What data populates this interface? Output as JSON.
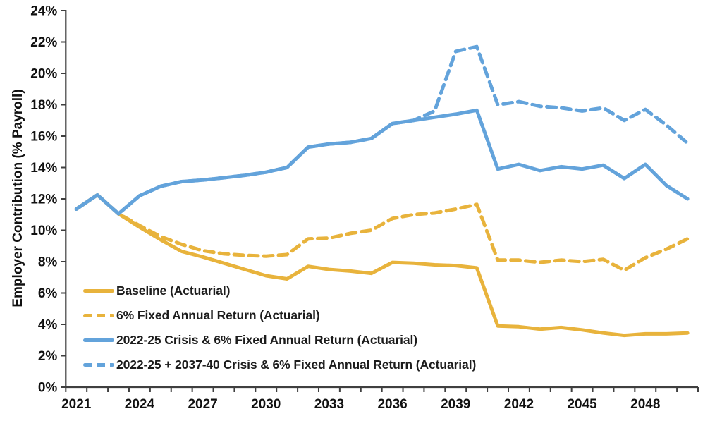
{
  "chart_data": {
    "type": "line",
    "title": "",
    "xlabel": "",
    "ylabel": "Employer Contribution (% Payroll)",
    "ylim": [
      0,
      24
    ],
    "y_tick_step": 2,
    "y_tick_suffix": "%",
    "grid": false,
    "legend_position": "inside bottom-left",
    "x": [
      2021,
      2022,
      2023,
      2024,
      2025,
      2026,
      2027,
      2028,
      2029,
      2030,
      2031,
      2032,
      2033,
      2034,
      2035,
      2036,
      2037,
      2038,
      2039,
      2040,
      2041,
      2042,
      2043,
      2044,
      2045,
      2046,
      2047,
      2048,
      2049,
      2050
    ],
    "x_tick_labels": [
      "2021",
      "2024",
      "2027",
      "2030",
      "2033",
      "2036",
      "2039",
      "2042",
      "2045",
      "2048"
    ],
    "axis_color": "#3f3f3f",
    "text_color": "#111111",
    "series": [
      {
        "name": "Baseline (Actuarial)",
        "color": "#e8b33c",
        "style": "solid",
        "values": [
          11.35,
          12.25,
          11.05,
          10.2,
          9.4,
          8.65,
          8.3,
          7.9,
          7.5,
          7.1,
          6.9,
          7.7,
          7.5,
          7.4,
          7.25,
          7.95,
          7.9,
          7.8,
          7.75,
          7.6,
          3.9,
          3.85,
          3.7,
          3.8,
          3.65,
          3.45,
          3.3,
          3.4,
          3.4,
          3.45
        ]
      },
      {
        "name": "6% Fixed Annual Return (Actuarial)",
        "color": "#e8b33c",
        "style": "dashed",
        "values": [
          11.35,
          12.25,
          11.05,
          10.3,
          9.6,
          9.1,
          8.7,
          8.5,
          8.4,
          8.35,
          8.45,
          9.45,
          9.5,
          9.8,
          10.0,
          10.75,
          11.0,
          11.1,
          11.35,
          11.65,
          8.1,
          8.1,
          7.95,
          8.1,
          8.0,
          8.15,
          7.45,
          8.25,
          8.8,
          9.45
        ]
      },
      {
        "name": "2022-25 Crisis & 6% Fixed Annual Return (Actuarial)",
        "color": "#63a3db",
        "style": "solid",
        "values": [
          11.35,
          12.25,
          11.05,
          12.2,
          12.8,
          13.1,
          13.2,
          13.35,
          13.5,
          13.7,
          14.0,
          15.3,
          15.5,
          15.6,
          15.85,
          16.8,
          17.0,
          17.2,
          17.4,
          17.65,
          13.9,
          14.2,
          13.8,
          14.05,
          13.9,
          14.15,
          13.3,
          14.2,
          12.85,
          12.0
        ]
      },
      {
        "name": "2022-25 + 2037-40 Crisis & 6% Fixed Annual Return (Actuarial)",
        "color": "#63a3db",
        "style": "dashed",
        "values": [
          11.35,
          12.25,
          11.05,
          12.2,
          12.8,
          13.1,
          13.2,
          13.35,
          13.5,
          13.7,
          14.0,
          15.3,
          15.5,
          15.6,
          15.85,
          16.8,
          17.0,
          17.6,
          21.4,
          21.7,
          18.0,
          18.2,
          17.9,
          17.8,
          17.6,
          17.8,
          17.0,
          17.7,
          16.7,
          15.55
        ]
      }
    ]
  }
}
